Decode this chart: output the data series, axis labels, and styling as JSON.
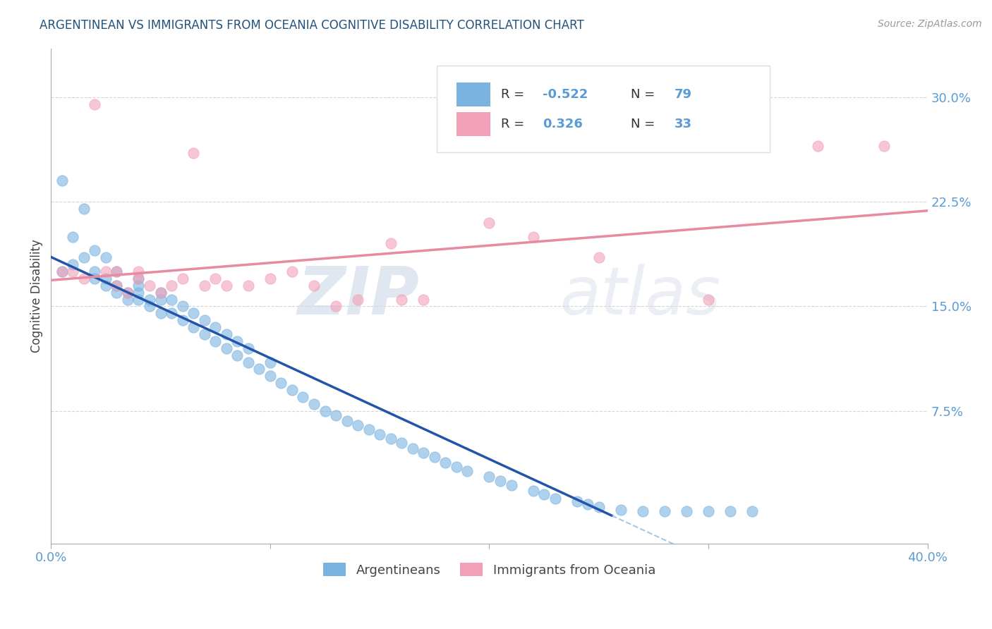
{
  "title": "ARGENTINEAN VS IMMIGRANTS FROM OCEANIA COGNITIVE DISABILITY CORRELATION CHART",
  "source": "Source: ZipAtlas.com",
  "ylabel": "Cognitive Disability",
  "xlim": [
    0.0,
    0.4
  ],
  "ylim": [
    -0.02,
    0.335
  ],
  "yticks": [
    0.075,
    0.15,
    0.225,
    0.3
  ],
  "yticklabels": [
    "7.5%",
    "15.0%",
    "22.5%",
    "30.0%"
  ],
  "blue_color": "#7ab3e0",
  "pink_color": "#f2a0b8",
  "blue_r": -0.522,
  "blue_n": 79,
  "pink_r": 0.326,
  "pink_n": 33,
  "legend_label_blue": "Argentineans",
  "legend_label_pink": "Immigrants from Oceania",
  "watermark_zip": "ZIP",
  "watermark_atlas": "atlas",
  "background_color": "#ffffff",
  "grid_color": "#cccccc",
  "title_color": "#23527c",
  "axis_label_color": "#444444",
  "tick_label_color": "#5b9bd5",
  "blue_line_color": "#2255aa",
  "pink_line_color": "#e88aa0",
  "blue_x": [
    0.005,
    0.01,
    0.015,
    0.02,
    0.02,
    0.025,
    0.025,
    0.03,
    0.03,
    0.03,
    0.035,
    0.035,
    0.04,
    0.04,
    0.04,
    0.04,
    0.045,
    0.045,
    0.05,
    0.05,
    0.05,
    0.055,
    0.055,
    0.06,
    0.06,
    0.065,
    0.065,
    0.07,
    0.07,
    0.075,
    0.075,
    0.08,
    0.08,
    0.085,
    0.085,
    0.09,
    0.09,
    0.095,
    0.1,
    0.1,
    0.105,
    0.11,
    0.115,
    0.12,
    0.125,
    0.13,
    0.135,
    0.14,
    0.145,
    0.15,
    0.155,
    0.16,
    0.165,
    0.17,
    0.175,
    0.18,
    0.185,
    0.19,
    0.2,
    0.205,
    0.21,
    0.22,
    0.225,
    0.23,
    0.24,
    0.245,
    0.25,
    0.26,
    0.27,
    0.28,
    0.29,
    0.3,
    0.31,
    0.32,
    0.005,
    0.01,
    0.015,
    0.02,
    0.025
  ],
  "blue_y": [
    0.175,
    0.18,
    0.185,
    0.17,
    0.175,
    0.165,
    0.17,
    0.16,
    0.165,
    0.175,
    0.155,
    0.16,
    0.155,
    0.16,
    0.165,
    0.17,
    0.15,
    0.155,
    0.145,
    0.155,
    0.16,
    0.145,
    0.155,
    0.14,
    0.15,
    0.135,
    0.145,
    0.13,
    0.14,
    0.125,
    0.135,
    0.12,
    0.13,
    0.115,
    0.125,
    0.11,
    0.12,
    0.105,
    0.1,
    0.11,
    0.095,
    0.09,
    0.085,
    0.08,
    0.075,
    0.072,
    0.068,
    0.065,
    0.062,
    0.058,
    0.055,
    0.052,
    0.048,
    0.045,
    0.042,
    0.038,
    0.035,
    0.032,
    0.028,
    0.025,
    0.022,
    0.018,
    0.015,
    0.012,
    0.01,
    0.008,
    0.006,
    0.004,
    0.003,
    0.003,
    0.003,
    0.003,
    0.003,
    0.003,
    0.24,
    0.2,
    0.22,
    0.19,
    0.185
  ],
  "pink_x": [
    0.005,
    0.01,
    0.015,
    0.02,
    0.025,
    0.03,
    0.03,
    0.035,
    0.04,
    0.04,
    0.045,
    0.05,
    0.055,
    0.06,
    0.065,
    0.07,
    0.075,
    0.08,
    0.09,
    0.1,
    0.11,
    0.12,
    0.13,
    0.14,
    0.155,
    0.16,
    0.17,
    0.2,
    0.22,
    0.25,
    0.3,
    0.35,
    0.38
  ],
  "pink_y": [
    0.175,
    0.175,
    0.17,
    0.295,
    0.175,
    0.165,
    0.175,
    0.16,
    0.17,
    0.175,
    0.165,
    0.16,
    0.165,
    0.17,
    0.26,
    0.165,
    0.17,
    0.165,
    0.165,
    0.17,
    0.175,
    0.165,
    0.15,
    0.155,
    0.195,
    0.155,
    0.155,
    0.21,
    0.2,
    0.185,
    0.155,
    0.265,
    0.265
  ]
}
